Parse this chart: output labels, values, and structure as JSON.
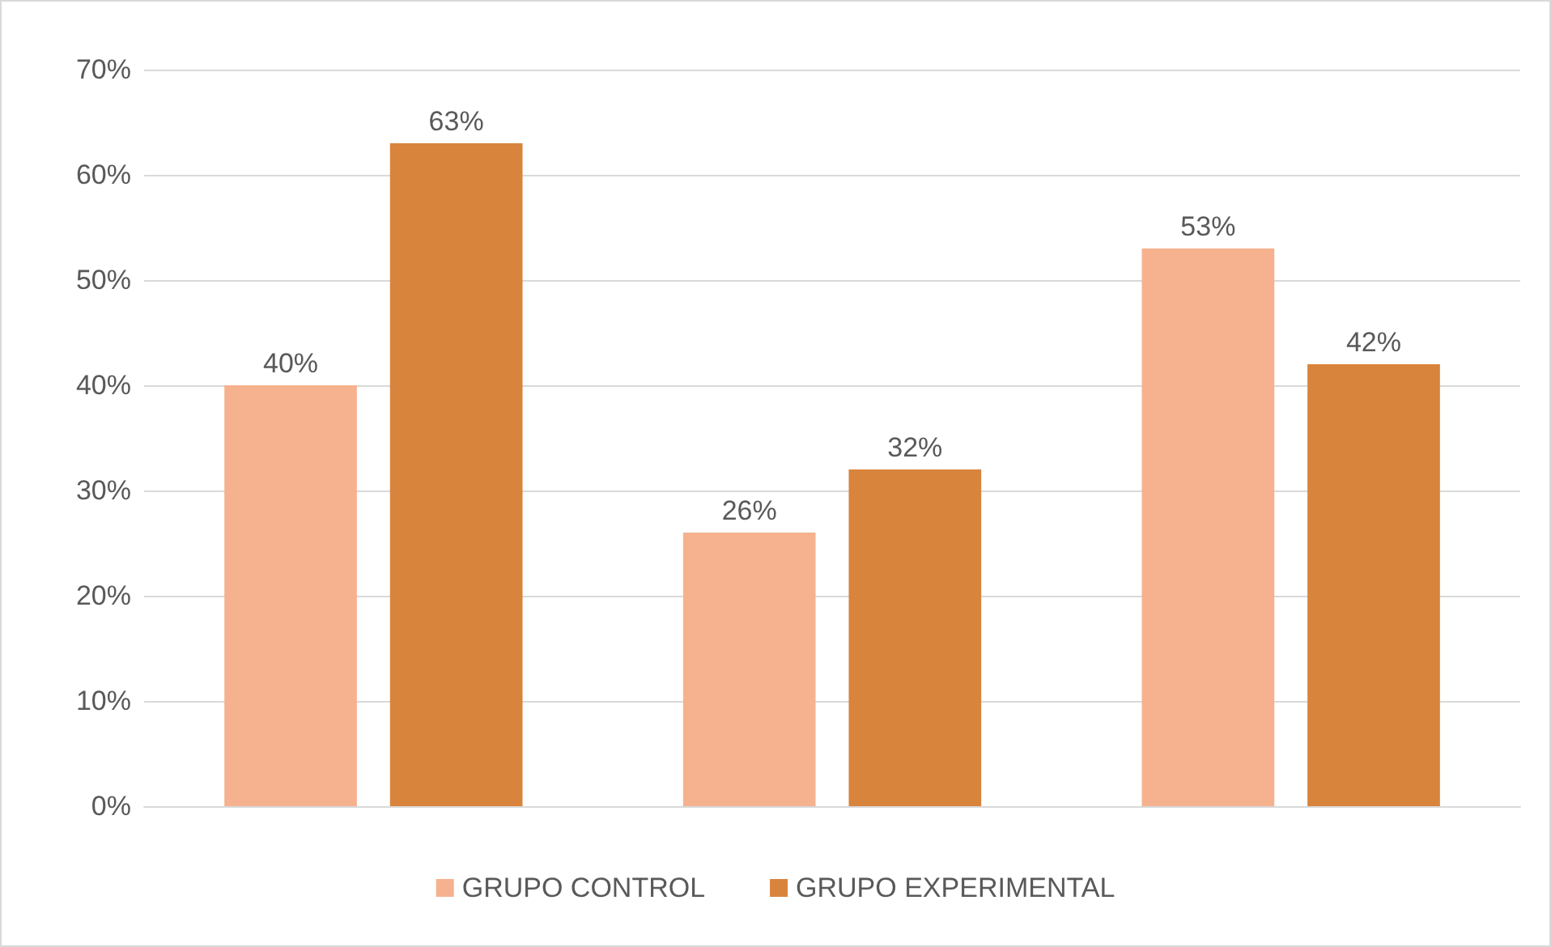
{
  "chart_data": {
    "type": "bar",
    "categories": [
      null,
      null,
      null
    ],
    "series": [
      {
        "name": "GRUPO CONTROL",
        "color": "#f6b28e",
        "values": [
          40,
          26,
          53
        ],
        "value_labels": [
          "40%",
          "26%",
          "53%"
        ]
      },
      {
        "name": "GRUPO EXPERIMENTAL",
        "color": "#d9843c",
        "values": [
          63,
          32,
          42
        ],
        "value_labels": [
          "63%",
          "32%",
          "42%"
        ]
      }
    ],
    "ylim": [
      0,
      70
    ],
    "yticks": [
      {
        "value": 0,
        "label": "0%"
      },
      {
        "value": 10,
        "label": "10%"
      },
      {
        "value": 20,
        "label": "20%"
      },
      {
        "value": 30,
        "label": "30%"
      },
      {
        "value": 40,
        "label": "40%"
      },
      {
        "value": 50,
        "label": "50%"
      },
      {
        "value": 60,
        "label": "60%"
      },
      {
        "value": 70,
        "label": "70%"
      }
    ],
    "grid": "y",
    "legend": "bottom"
  }
}
